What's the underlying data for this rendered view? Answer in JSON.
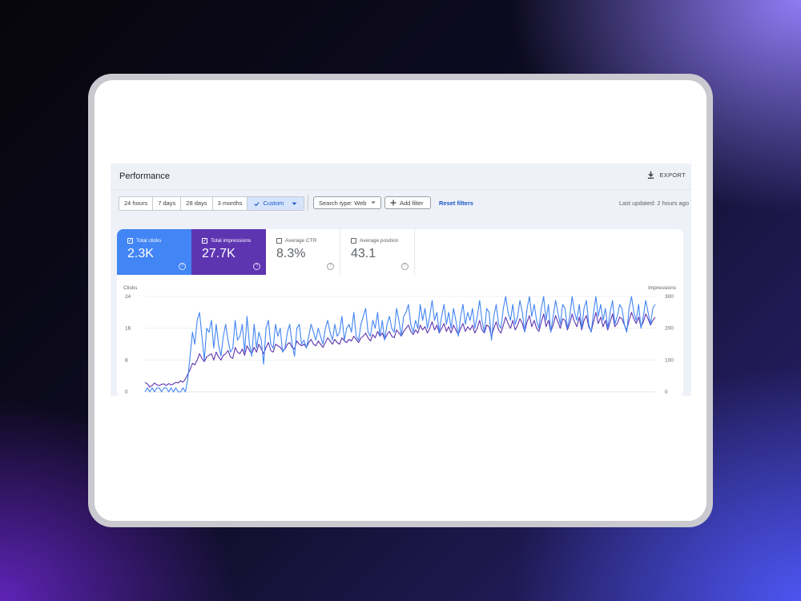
{
  "panel": {
    "title": "Performance",
    "export_label": "EXPORT",
    "last_updated": "Last updated: 2 hours ago"
  },
  "filters": {
    "ranges": [
      "24 hours",
      "7 days",
      "28 days",
      "3 months"
    ],
    "custom_label": "Custom",
    "search_type": "Search type: Web",
    "add_filter": "Add filter",
    "reset": "Reset filters"
  },
  "metrics": {
    "clicks": {
      "label": "Total clicks",
      "value": "2.3K",
      "checked": true
    },
    "impressions": {
      "label": "Total impressions",
      "value": "27.7K",
      "checked": true
    },
    "ctr": {
      "label": "Average CTR",
      "value": "8.3%",
      "checked": false
    },
    "position": {
      "label": "Average position",
      "value": "43.1",
      "checked": false
    }
  },
  "colors": {
    "clicks": "#4285f4",
    "impressions": "#5e35b1",
    "accent": "#1a56c7"
  },
  "chart_data": {
    "type": "line",
    "ylabel_left": "Clicks",
    "ylabel_right": "Impressions",
    "yticks_left": [
      "24",
      "16",
      "8",
      "0"
    ],
    "yticks_right": [
      "300",
      "200",
      "100",
      "0"
    ],
    "ylim_left": [
      0,
      24
    ],
    "ylim_right": [
      0,
      300
    ],
    "grid": true,
    "series": [
      {
        "name": "Total clicks",
        "axis": "left",
        "values": [
          0,
          1,
          0,
          1,
          0,
          1,
          1,
          0,
          1,
          1,
          0,
          1,
          0,
          1,
          0,
          0,
          1,
          0,
          3,
          9,
          15,
          12,
          18,
          20,
          14,
          8,
          16,
          15,
          18,
          11,
          17,
          12,
          9,
          14,
          17,
          13,
          10,
          11,
          18,
          13,
          14,
          17,
          10,
          19,
          12,
          9,
          17,
          11,
          15,
          13,
          7,
          16,
          18,
          12,
          11,
          17,
          14,
          16,
          10,
          11,
          15,
          17,
          12,
          9,
          16,
          17,
          12,
          13,
          11,
          14,
          17,
          15,
          13,
          16,
          14,
          12,
          16,
          18,
          15,
          13,
          17,
          14,
          15,
          19,
          13,
          16,
          17,
          15,
          20,
          14,
          13,
          17,
          19,
          21,
          15,
          14,
          18,
          16,
          20,
          14,
          18,
          13,
          17,
          19,
          16,
          15,
          21,
          18,
          14,
          19,
          20,
          22,
          17,
          15,
          18,
          16,
          22,
          18,
          21,
          16,
          19,
          23,
          18,
          20,
          15,
          19,
          22,
          17,
          20,
          16,
          21,
          18,
          14,
          19,
          22,
          17,
          20,
          18,
          21,
          16,
          19,
          23,
          18,
          15,
          21,
          20,
          13,
          19,
          22,
          17,
          16,
          21,
          24,
          20,
          18,
          22,
          17,
          19,
          23,
          20,
          15,
          21,
          24,
          19,
          22,
          18,
          16,
          21,
          24,
          18,
          22,
          15,
          19,
          23,
          20,
          17,
          22,
          21,
          16,
          19,
          24,
          20,
          18,
          22,
          16,
          21,
          23,
          17,
          15,
          20,
          24,
          19,
          22,
          18,
          21,
          16,
          20,
          23,
          17,
          19,
          22,
          21,
          17,
          15,
          21,
          24,
          20,
          18,
          22,
          16,
          19,
          23,
          20,
          17,
          21,
          22
        ],
        "values_note": ""
      },
      {
        "name": "Total impressions",
        "axis": "right",
        "values": [
          30,
          25,
          15,
          20,
          28,
          22,
          20,
          24,
          25,
          20,
          26,
          22,
          25,
          30,
          28,
          35,
          30,
          40,
          55,
          70,
          90,
          85,
          100,
          120,
          105,
          95,
          110,
          115,
          120,
          100,
          125,
          110,
          100,
          115,
          120,
          130,
          110,
          105,
          140,
          125,
          120,
          135,
          115,
          145,
          130,
          120,
          140,
          125,
          150,
          135,
          120,
          140,
          155,
          130,
          125,
          150,
          145,
          140,
          130,
          135,
          150,
          155,
          140,
          135,
          160,
          150,
          145,
          150,
          140,
          155,
          165,
          150,
          145,
          160,
          150,
          140,
          155,
          170,
          160,
          150,
          165,
          155,
          150,
          170,
          160,
          155,
          165,
          160,
          175,
          165,
          155,
          170,
          175,
          185,
          170,
          160,
          180,
          170,
          190,
          175,
          185,
          165,
          180,
          190,
          175,
          170,
          195,
          185,
          175,
          190,
          200,
          210,
          190,
          180,
          195,
          185,
          210,
          195,
          205,
          185,
          200,
          220,
          195,
          210,
          185,
          200,
          215,
          190,
          205,
          185,
          210,
          195,
          180,
          200,
          215,
          190,
          205,
          195,
          210,
          185,
          200,
          225,
          195,
          185,
          210,
          205,
          175,
          200,
          220,
          195,
          185,
          210,
          235,
          215,
          200,
          225,
          195,
          210,
          230,
          215,
          190,
          220,
          240,
          205,
          225,
          200,
          190,
          220,
          245,
          205,
          225,
          190,
          210,
          240,
          220,
          200,
          230,
          225,
          195,
          215,
          245,
          220,
          205,
          235,
          195,
          225,
          240,
          205,
          190,
          220,
          250,
          215,
          235,
          205,
          225,
          195,
          220,
          245,
          205,
          215,
          235,
          230,
          210,
          195,
          225,
          250,
          230,
          215,
          235,
          205,
          220,
          245,
          230,
          210,
          225,
          235
        ]
      }
    ]
  }
}
